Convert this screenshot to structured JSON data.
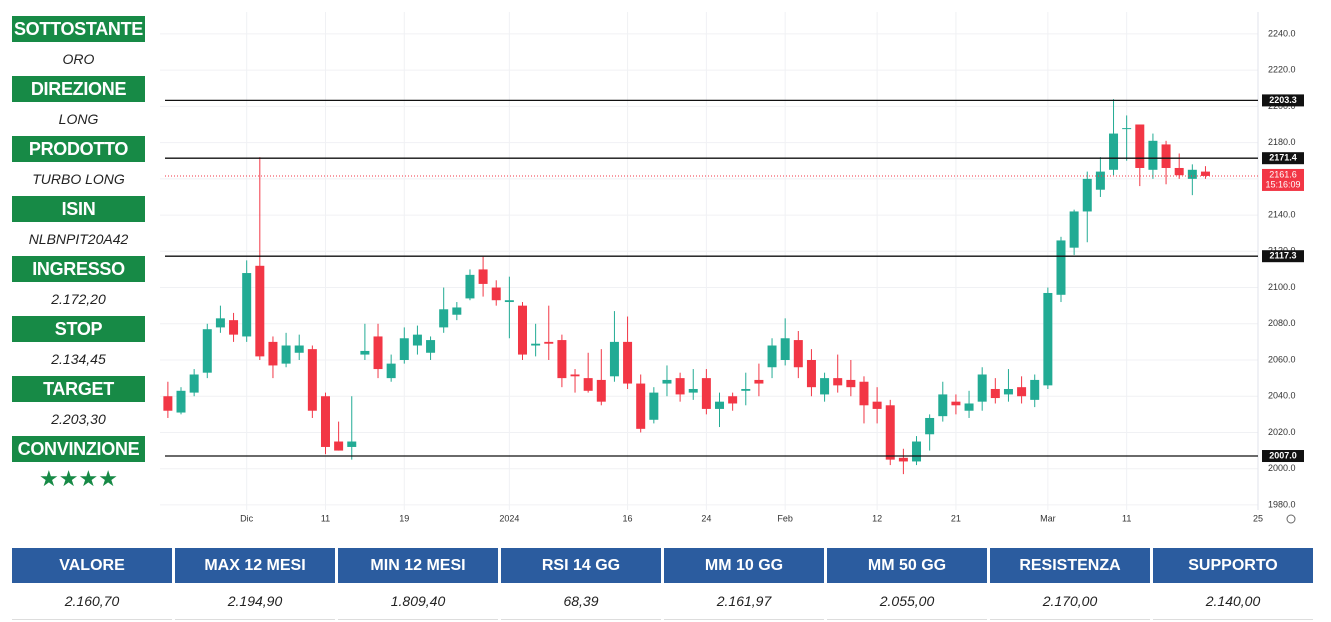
{
  "sidebar": [
    {
      "label": "SOTTOSTANTE",
      "value": "ORO"
    },
    {
      "label": "DIREZIONE",
      "value": "LONG"
    },
    {
      "label": "PRODOTTO",
      "value": "TURBO LONG"
    },
    {
      "label": "ISIN",
      "value": "NLBNPIT20A42"
    },
    {
      "label": "INGRESSO",
      "value": "2.172,20"
    },
    {
      "label": "STOP",
      "value": "2.134,45"
    },
    {
      "label": "TARGET",
      "value": "2.203,30"
    },
    {
      "label": "CONVINZIONE",
      "value": "★★★★"
    }
  ],
  "chart_data": {
    "type": "candlestick",
    "up_color": "#22ab94",
    "down_color": "#f23645",
    "grid": true,
    "x": [
      0,
      1,
      2,
      3,
      4,
      5,
      6,
      7,
      8,
      9,
      10,
      11,
      12,
      13,
      14,
      15,
      16,
      17,
      18,
      19,
      20,
      21,
      22,
      23,
      24,
      25,
      26,
      27,
      28,
      29,
      30,
      31,
      32,
      33,
      34,
      35,
      36,
      37,
      38,
      39,
      40,
      41,
      42,
      43,
      44,
      45,
      46,
      47,
      48,
      49,
      50,
      51,
      52,
      53,
      54,
      55,
      56,
      57,
      58,
      59,
      60,
      61,
      62,
      63,
      64,
      65,
      66,
      67,
      68,
      69,
      70,
      71,
      72,
      73,
      74,
      75,
      76,
      77,
      78,
      79
    ],
    "open": [
      2040,
      2031,
      2042,
      2053,
      2078,
      2082,
      2073,
      2112,
      2070,
      2058,
      2064,
      2066,
      2040,
      2015,
      2012,
      2063,
      2073,
      2050,
      2060,
      2068,
      2064,
      2078,
      2085,
      2094,
      2110,
      2100,
      2092,
      2090,
      2068,
      2070,
      2071,
      2052,
      2050,
      2049,
      2051,
      2070,
      2047,
      2027,
      2047,
      2050,
      2042,
      2050,
      2033,
      2040,
      2043,
      2049,
      2056,
      2060,
      2071,
      2060,
      2041,
      2050,
      2049,
      2048,
      2037,
      2035,
      2006,
      2004,
      2019,
      2029,
      2037,
      2032,
      2037,
      2044,
      2041,
      2045,
      2038,
      2046,
      2096,
      2122,
      2142,
      2154,
      2165,
      2188,
      2190,
      2165,
      2179,
      2166,
      2160,
      2164
    ],
    "high": [
      2048,
      2045,
      2055,
      2080,
      2090,
      2086,
      2115,
      2172,
      2073,
      2075,
      2074,
      2068,
      2042,
      2026,
      2040,
      2080,
      2080,
      2063,
      2078,
      2079,
      2073,
      2100,
      2092,
      2110,
      2117,
      2104,
      2106,
      2092,
      2080,
      2090,
      2074,
      2055,
      2064,
      2066,
      2087,
      2084,
      2052,
      2045,
      2057,
      2053,
      2055,
      2055,
      2042,
      2042,
      2053,
      2058,
      2072,
      2083,
      2076,
      2066,
      2053,
      2063,
      2060,
      2051,
      2045,
      2038,
      2011,
      2018,
      2030,
      2048,
      2041,
      2043,
      2056,
      2050,
      2055,
      2051,
      2052,
      2100,
      2128,
      2143,
      2164,
      2172,
      2204,
      2195,
      2190,
      2185,
      2181,
      2174,
      2168,
      2167
    ],
    "low": [
      2028,
      2030,
      2040,
      2050,
      2075,
      2070,
      2070,
      2060,
      2050,
      2056,
      2060,
      2028,
      2008,
      2010,
      2005,
      2060,
      2050,
      2048,
      2058,
      2063,
      2060,
      2075,
      2082,
      2093,
      2095,
      2090,
      2072,
      2060,
      2062,
      2060,
      2045,
      2042,
      2042,
      2035,
      2048,
      2044,
      2020,
      2025,
      2040,
      2037,
      2038,
      2030,
      2023,
      2032,
      2035,
      2040,
      2050,
      2057,
      2050,
      2040,
      2037,
      2042,
      2040,
      2025,
      2025,
      2002,
      1997,
      2002,
      2010,
      2026,
      2030,
      2028,
      2032,
      2036,
      2037,
      2036,
      2034,
      2044,
      2092,
      2118,
      2125,
      2150,
      2162,
      2170,
      2156,
      2160,
      2157,
      2160,
      2151,
      2160
    ],
    "close": [
      2032,
      2043,
      2052,
      2077,
      2083,
      2074,
      2108,
      2062,
      2057,
      2068,
      2068,
      2032,
      2012,
      2010,
      2015,
      2065,
      2055,
      2058,
      2072,
      2074,
      2071,
      2088,
      2089,
      2107,
      2102,
      2093,
      2093,
      2063,
      2069,
      2069,
      2050,
      2051,
      2043,
      2037,
      2070,
      2047,
      2022,
      2042,
      2049,
      2041,
      2044,
      2033,
      2037,
      2036,
      2044,
      2047,
      2068,
      2072,
      2056,
      2045,
      2050,
      2046,
      2045,
      2035,
      2033,
      2005,
      2004,
      2015,
      2028,
      2041,
      2035,
      2036,
      2052,
      2039,
      2044,
      2040,
      2049,
      2097,
      2126,
      2142,
      2160,
      2164,
      2185,
      2188,
      2166,
      2181,
      2166,
      2162,
      2165,
      2161.6
    ],
    "xlim": [
      -0.6,
      83
    ],
    "xticks": [
      {
        "value": 6,
        "label": "Dic"
      },
      {
        "value": 12,
        "label": "11"
      },
      {
        "value": 18,
        "label": "19"
      },
      {
        "value": 26,
        "label": "2024"
      },
      {
        "value": 35,
        "label": "16"
      },
      {
        "value": 41,
        "label": "24"
      },
      {
        "value": 47,
        "label": "Feb"
      },
      {
        "value": 54,
        "label": "12"
      },
      {
        "value": 60,
        "label": "21"
      },
      {
        "value": 67,
        "label": "Mar"
      },
      {
        "value": 73,
        "label": "11"
      },
      {
        "value": 83,
        "label": "25"
      }
    ],
    "ylim": [
      1977.2,
      2252.1
    ],
    "yticks": [
      {
        "value": 1980,
        "label": "1980.0"
      },
      {
        "value": 2000,
        "label": "2000.0"
      },
      {
        "value": 2020,
        "label": "2020.0"
      },
      {
        "value": 2040,
        "label": "2040.0"
      },
      {
        "value": 2060,
        "label": "2060.0"
      },
      {
        "value": 2080,
        "label": "2080.0"
      },
      {
        "value": 2100,
        "label": "2100.0"
      },
      {
        "value": 2120,
        "label": "2120.0"
      },
      {
        "value": 2140,
        "label": "2140.0"
      },
      {
        "value": 2160,
        "label": "2160.0"
      },
      {
        "value": 2180,
        "label": "2180.0"
      },
      {
        "value": 2200,
        "label": "2200.0"
      },
      {
        "value": 2220,
        "label": "2220.0"
      },
      {
        "value": 2240,
        "label": "2240.0"
      }
    ],
    "levels": [
      2203.3,
      2171.4,
      2117.3,
      {
        "value": 2007,
        "label": "2007.0"
      }
    ],
    "last": {
      "value": 2161.6,
      "time": "15:16:09"
    }
  },
  "table": {
    "headers": [
      "VALORE",
      "MAX 12 MESI",
      "MIN 12 MESI",
      "RSI 14 GG",
      "MM 10 GG",
      "MM 50 GG",
      "RESISTENZA",
      "SUPPORTO"
    ],
    "values": [
      "2.160,70",
      "2.194,90",
      "1.809,40",
      "68,39",
      "2.161,97",
      "2.055,00",
      "2.170,00",
      "2.140,00"
    ]
  }
}
